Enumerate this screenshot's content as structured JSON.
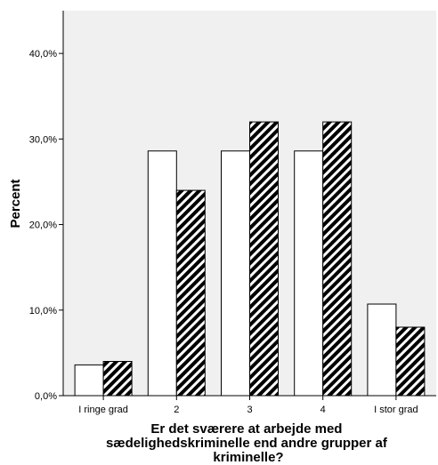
{
  "chart_data": {
    "type": "bar",
    "categories": [
      "I ringe grad",
      "2",
      "3",
      "4",
      "I stor grad"
    ],
    "series": [
      {
        "values": [
          3.6,
          28.6,
          28.6,
          28.6,
          10.7
        ],
        "fill": "#ffffff"
      },
      {
        "values": [
          4.0,
          24.0,
          32.0,
          32.0,
          8.0
        ],
        "fill": "hatched"
      }
    ],
    "ylabel": "Percent",
    "xlabel_lines": [
      "Er det sværere at arbejde med",
      "sædelighedskriminelle end andre grupper af",
      "kriminelle?"
    ],
    "ylim": [
      0,
      45
    ],
    "yticks": [
      0,
      10,
      20,
      30,
      40
    ],
    "ytick_labels": [
      "0,0%",
      "10,0%",
      "20,0%",
      "30,0%",
      "40,0%"
    ],
    "plot_background": "#f0f0f0",
    "bar_outline": "#000000",
    "grid": false,
    "legend": "none"
  }
}
